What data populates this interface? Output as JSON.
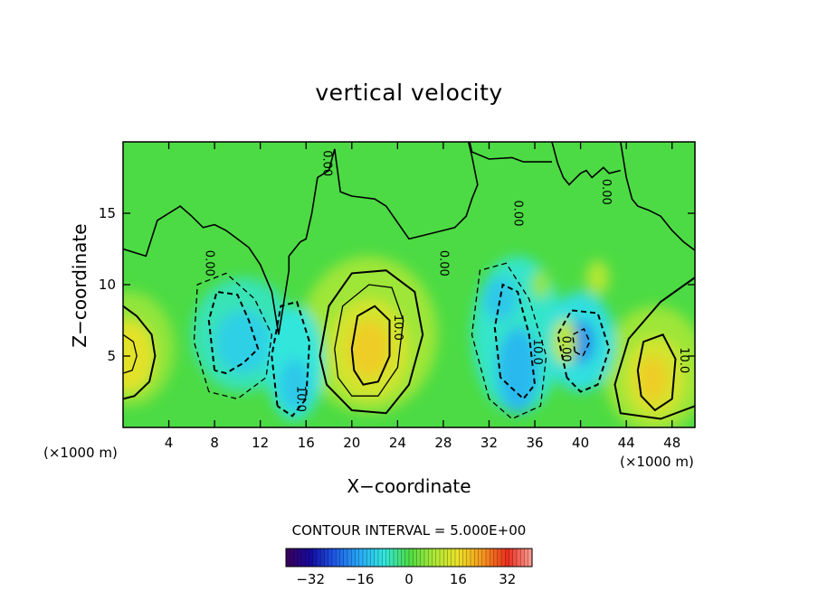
{
  "chart_data": {
    "type": "heatmap",
    "subtype": "filled-contour",
    "title": "vertical velocity",
    "xlabel": "X−coordinate",
    "ylabel": "Z−coordinate",
    "x_unit_left": "(×1000 m)",
    "x_unit_right": "(×1000 m)",
    "xlim": [
      0,
      50
    ],
    "ylim": [
      0,
      20
    ],
    "x_ticks": [
      4,
      8,
      12,
      16,
      20,
      24,
      28,
      32,
      36,
      40,
      44,
      48
    ],
    "y_ticks": [
      5,
      10,
      15
    ],
    "contour_interval_text": "CONTOUR INTERVAL =  5.000E+00",
    "contour_interval": 5,
    "colorbar": {
      "ticks": [
        -32,
        -16,
        0,
        16,
        32
      ],
      "tick_labels": [
        "−32",
        "−16",
        "0",
        "16",
        "32"
      ],
      "range": [
        -40,
        40
      ]
    },
    "contour_labels": [
      {
        "x": 17.8,
        "y": 18.5,
        "text": "0.00"
      },
      {
        "x": 7.5,
        "y": 11.5,
        "text": "0.00"
      },
      {
        "x": 28.0,
        "y": 11.5,
        "text": "0.00"
      },
      {
        "x": 34.5,
        "y": 15.0,
        "text": "0.00"
      },
      {
        "x": 42.2,
        "y": 16.5,
        "text": "0.00"
      },
      {
        "x": 38.7,
        "y": 5.5,
        "text": "0.00"
      },
      {
        "x": 24.0,
        "y": 7.0,
        "text": "10.0"
      },
      {
        "x": 15.5,
        "y": 2.0,
        "text": "10.0"
      },
      {
        "x": 36.2,
        "y": 5.3,
        "text": "10.0"
      },
      {
        "x": 49.0,
        "y": 4.7,
        "text": "10.0"
      }
    ],
    "features": [
      {
        "name": "updraft",
        "x": 0.5,
        "z": 5.0,
        "w_peak": 15
      },
      {
        "name": "updraft",
        "x": 21.5,
        "z": 5.5,
        "w_peak": 18
      },
      {
        "name": "updraft",
        "x": 46.5,
        "z": 3.5,
        "w_peak": 17
      },
      {
        "name": "downdraft",
        "x": 10.5,
        "z": 6.0,
        "w_peak": -11
      },
      {
        "name": "downdraft",
        "x": 15.0,
        "z": 3.0,
        "w_peak": -12
      },
      {
        "name": "downdraft",
        "x": 34.5,
        "z": 4.0,
        "w_peak": -14
      },
      {
        "name": "downdraft",
        "x": 33.0,
        "z": 9.0,
        "w_peak": -12
      },
      {
        "name": "downdraft",
        "x": 40.0,
        "z": 6.0,
        "w_peak": -19
      }
    ],
    "tropopause_z": 12.5,
    "colors": {
      "background_field": "#4cdb44",
      "frame": "#000000"
    }
  }
}
